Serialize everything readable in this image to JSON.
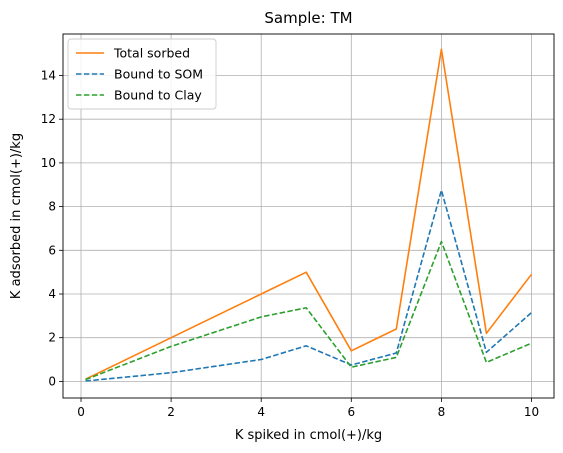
{
  "chart_data": {
    "type": "line",
    "title": "Sample: TM",
    "xlabel": "K spiked in cmol(+)/kg",
    "ylabel": "K adsorbed in cmol(+)/kg",
    "x": [
      0.1,
      2,
      4,
      5,
      6,
      7,
      8,
      9,
      10
    ],
    "xlim": [
      -0.4,
      10.5
    ],
    "ylim": [
      -0.76,
      15.9
    ],
    "xticks": [
      0,
      2,
      4,
      6,
      8,
      10
    ],
    "yticks": [
      0,
      2,
      4,
      6,
      8,
      10,
      12,
      14
    ],
    "grid": true,
    "legend_position": "top-left",
    "series": [
      {
        "name": "Total sorbed",
        "color": "#ff7f0e",
        "linestyle": "solid",
        "values": [
          0.1,
          2.0,
          4.0,
          5.0,
          1.4,
          2.4,
          15.2,
          2.2,
          4.9
        ]
      },
      {
        "name": "Bound to SOM",
        "color": "#1f77b4",
        "linestyle": "dashed",
        "values": [
          0.02,
          0.4,
          1.0,
          1.63,
          0.75,
          1.3,
          8.75,
          1.33,
          3.15
        ]
      },
      {
        "name": "Bound to Clay",
        "color": "#2ca02c",
        "linestyle": "dashed",
        "values": [
          0.08,
          1.6,
          2.95,
          3.37,
          0.65,
          1.1,
          6.4,
          0.87,
          1.75
        ]
      }
    ]
  }
}
